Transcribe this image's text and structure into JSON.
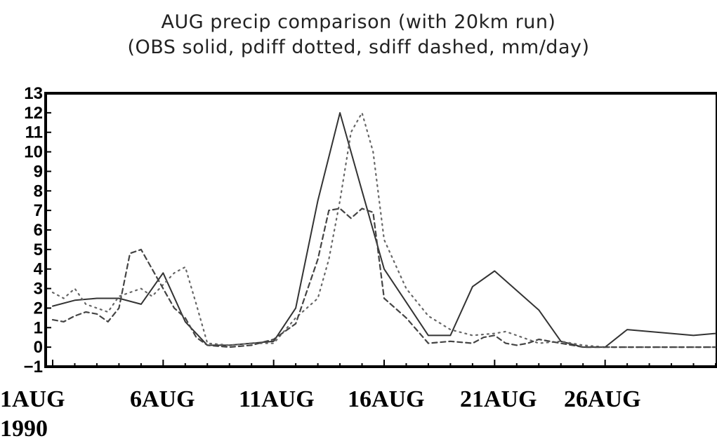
{
  "chart_data": {
    "type": "line",
    "title": "AUG precip comparison (with 20km run)",
    "subtitle": "(OBS solid, pdiff dotted, sdiff dashed, mm/day)",
    "x_tick_labels": [
      "1AUG",
      "6AUG",
      "11AUG",
      "16AUG",
      "21AUG",
      "26AUG"
    ],
    "x_tick_days": [
      1,
      6,
      11,
      16,
      21,
      26
    ],
    "x_year_label": "1990",
    "xlim": [
      1,
      31
    ],
    "ylim": [
      -1,
      13
    ],
    "y_ticks": [
      -1,
      0,
      1,
      2,
      3,
      4,
      5,
      6,
      7,
      8,
      9,
      10,
      11,
      12,
      13
    ],
    "grid": false,
    "x_unit": "day of August 1990",
    "series": [
      {
        "name": "OBS",
        "style": "solid",
        "color": "#333333",
        "x": [
          1,
          2,
          3,
          4,
          5,
          6,
          7,
          8,
          9,
          10,
          11,
          12,
          13,
          14,
          15,
          16,
          17,
          18,
          19,
          20,
          21,
          22,
          23,
          24,
          25,
          26,
          27,
          28,
          29,
          30,
          31
        ],
        "values": [
          2.1,
          2.4,
          2.5,
          2.5,
          2.2,
          3.8,
          1.3,
          0.1,
          0.1,
          0.2,
          0.3,
          2.0,
          7.5,
          12.0,
          8.0,
          4.0,
          2.3,
          0.6,
          0.6,
          3.1,
          3.9,
          2.9,
          1.9,
          0.3,
          0.0,
          0.0,
          0.9,
          0.8,
          0.7,
          0.6,
          0.7
        ]
      },
      {
        "name": "pdiff",
        "style": "dotted",
        "color": "#666666",
        "x": [
          1,
          1.5,
          2,
          2.5,
          3,
          3.5,
          4,
          4.5,
          5,
          5.5,
          6,
          6.5,
          7,
          7.5,
          8,
          9,
          10,
          11,
          12,
          13,
          13.5,
          14,
          14.5,
          15,
          15.5,
          16,
          17,
          18,
          19,
          20,
          21,
          21.5,
          22,
          23,
          24,
          25,
          26,
          27,
          28,
          29,
          30,
          31
        ],
        "values": [
          2.8,
          2.5,
          3.0,
          2.2,
          2.0,
          1.8,
          2.6,
          2.8,
          3.0,
          2.6,
          3.2,
          3.8,
          4.1,
          2.2,
          0.2,
          0.1,
          0.2,
          0.2,
          1.5,
          2.5,
          4.5,
          7.5,
          11.0,
          12.0,
          10.0,
          5.5,
          3.0,
          1.6,
          0.9,
          0.6,
          0.7,
          0.8,
          0.6,
          0.2,
          0.3,
          0.1,
          0.0,
          0.0,
          0.0,
          0.0,
          0.0,
          0.0
        ]
      },
      {
        "name": "sdiff",
        "style": "dashed",
        "color": "#444444",
        "x": [
          1,
          1.5,
          2,
          2.5,
          3,
          3.5,
          4,
          4.5,
          5,
          5.5,
          6,
          6.5,
          7,
          7.5,
          8,
          9,
          10,
          11,
          12,
          13,
          13.5,
          14,
          14.5,
          15,
          15.5,
          16,
          16.5,
          17,
          18,
          19,
          20,
          20.5,
          21,
          21.5,
          22,
          22.5,
          23,
          24,
          25,
          26,
          27,
          28,
          29,
          30,
          31
        ],
        "values": [
          1.4,
          1.3,
          1.6,
          1.8,
          1.7,
          1.3,
          2.0,
          4.8,
          5.0,
          4.0,
          3.0,
          2.0,
          1.5,
          0.5,
          0.1,
          0.0,
          0.1,
          0.4,
          1.2,
          4.5,
          7.0,
          7.1,
          6.6,
          7.1,
          6.9,
          2.5,
          2.0,
          1.5,
          0.2,
          0.3,
          0.2,
          0.5,
          0.6,
          0.2,
          0.1,
          0.2,
          0.4,
          0.2,
          0.0,
          0.0,
          0.0,
          0.0,
          0.0,
          0.0,
          0.0
        ]
      }
    ]
  }
}
